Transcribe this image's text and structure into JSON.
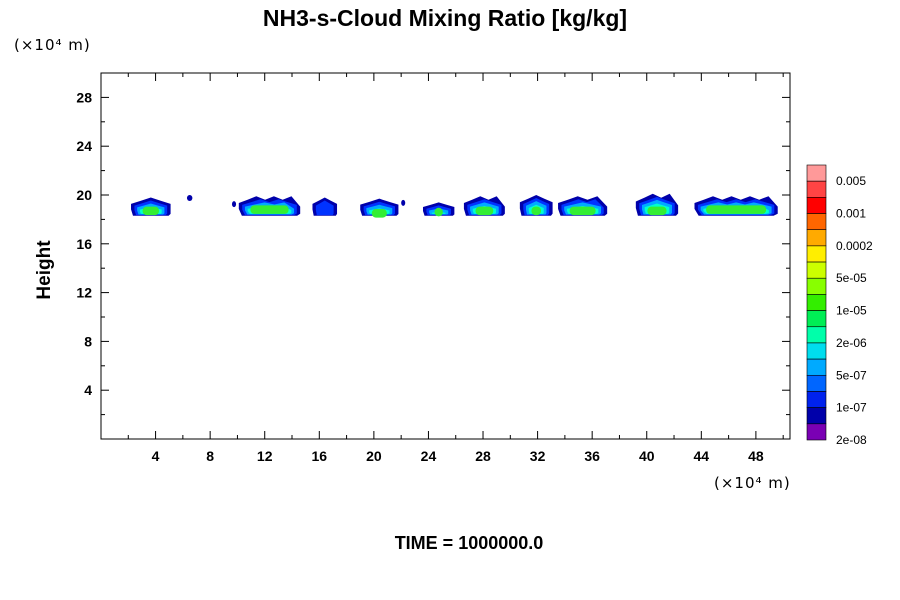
{
  "chart_data": {
    "type": "contour",
    "title": "NH3-s-Cloud Mixing Ratio [kg/kg]",
    "x_unit_label": "(×10⁴ m)",
    "y_unit_label": "(×10⁴ m)",
    "ylabel": "Height",
    "xlim": [
      0,
      50.5
    ],
    "ylim": [
      0,
      30
    ],
    "x_ticks": [
      "4",
      "8",
      "12",
      "16",
      "20",
      "24",
      "28",
      "32",
      "36",
      "40",
      "44",
      "48"
    ],
    "x_tick_values": [
      4,
      8,
      12,
      16,
      20,
      24,
      28,
      32,
      36,
      40,
      44,
      48
    ],
    "y_ticks": [
      "4",
      "8",
      "12",
      "16",
      "20",
      "24",
      "28"
    ],
    "y_tick_values": [
      4,
      8,
      12,
      16,
      20,
      24,
      28
    ],
    "time_label": "TIME = 1000000.0",
    "colorbar": {
      "levels": [
        "0.005",
        "0.001",
        "0.0002",
        "5e-05",
        "1e-05",
        "2e-06",
        "5e-07",
        "1e-07",
        "2e-08"
      ],
      "colors": [
        "#ff9999",
        "#ff4444",
        "#ff0000",
        "#ff6600",
        "#ffaa00",
        "#ffee00",
        "#ccff00",
        "#88ff00",
        "#33ee00",
        "#00ee55",
        "#00ffaa",
        "#00ddee",
        "#00aaff",
        "#0066ff",
        "#0022ee",
        "#0000aa",
        "#7a00b4"
      ]
    },
    "cloud_base_y": 18.3,
    "clouds": [
      {
        "x0": 2.2,
        "x1": 5.1,
        "top": 19.8,
        "core": 18.7
      },
      {
        "x0": 6.3,
        "x1": 6.7,
        "top": 19.9,
        "core": null
      },
      {
        "x0": 9.6,
        "x1": 9.9,
        "top": 19.4,
        "core": null
      },
      {
        "x0": 10.1,
        "x1": 14.6,
        "top": 19.9,
        "core": 18.8
      },
      {
        "x0": 15.5,
        "x1": 17.3,
        "top": 19.8,
        "core": null
      },
      {
        "x0": 19.0,
        "x1": 21.8,
        "top": 19.7,
        "core": 18.5
      },
      {
        "x0": 22.0,
        "x1": 22.3,
        "top": 19.5,
        "core": null
      },
      {
        "x0": 23.6,
        "x1": 25.9,
        "top": 19.4,
        "core": 18.6
      },
      {
        "x0": 26.6,
        "x1": 29.6,
        "top": 19.9,
        "core": 18.7
      },
      {
        "x0": 30.7,
        "x1": 33.1,
        "top": 20.0,
        "core": 18.7
      },
      {
        "x0": 33.5,
        "x1": 37.1,
        "top": 19.9,
        "core": 18.7
      },
      {
        "x0": 39.2,
        "x1": 42.3,
        "top": 20.1,
        "core": 18.7
      },
      {
        "x0": 43.5,
        "x1": 49.6,
        "top": 19.9,
        "core": 18.8
      }
    ]
  }
}
